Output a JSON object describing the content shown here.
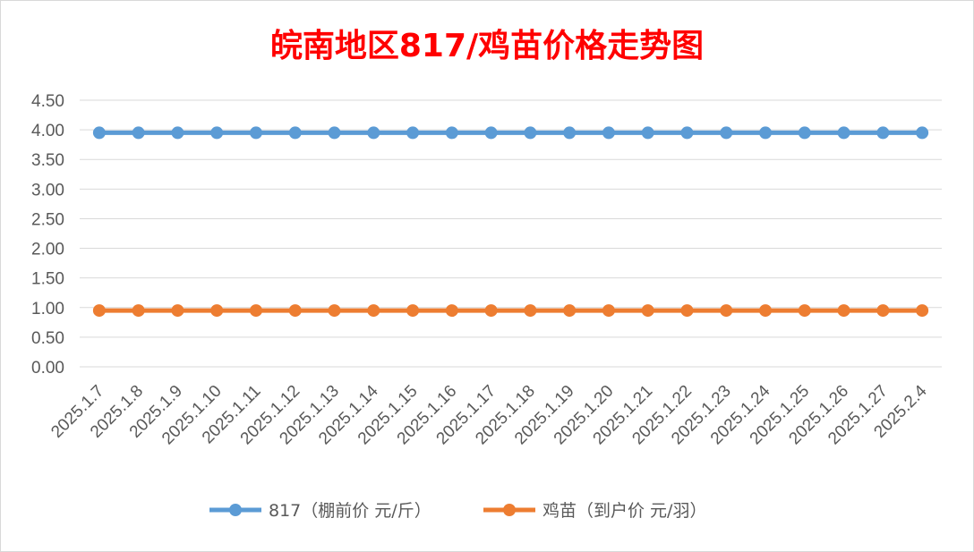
{
  "chart_data": {
    "type": "line",
    "title": "皖南地区817/鸡苗价格走势图",
    "categories": [
      "2025.1.7",
      "2025.1.8",
      "2025.1.9",
      "2025.1.10",
      "2025.1.11",
      "2025.1.12",
      "2025.1.13",
      "2025.1.14",
      "2025.1.15",
      "2025.1.16",
      "2025.1.17",
      "2025.1.18",
      "2025.1.19",
      "2025.1.20",
      "2025.1.21",
      "2025.1.22",
      "2025.1.23",
      "2025.1.24",
      "2025.1.25",
      "2025.1.26",
      "2025.1.27",
      "2025.2.4"
    ],
    "series": [
      {
        "name": "817（棚前价 元/斤）",
        "color": "#5b9bd5",
        "values": [
          3.95,
          3.95,
          3.95,
          3.95,
          3.95,
          3.95,
          3.95,
          3.95,
          3.95,
          3.95,
          3.95,
          3.95,
          3.95,
          3.95,
          3.95,
          3.95,
          3.95,
          3.95,
          3.95,
          3.95,
          3.95,
          3.95
        ]
      },
      {
        "name": "鸡苗（到户价 元/羽）",
        "color": "#ed7d31",
        "values": [
          0.95,
          0.95,
          0.95,
          0.95,
          0.95,
          0.95,
          0.95,
          0.95,
          0.95,
          0.95,
          0.95,
          0.95,
          0.95,
          0.95,
          0.95,
          0.95,
          0.95,
          0.95,
          0.95,
          0.95,
          0.95,
          0.95
        ]
      }
    ],
    "ylim": [
      0,
      4.5
    ],
    "yticks": [
      "0.00",
      "0.50",
      "1.00",
      "1.50",
      "2.00",
      "2.50",
      "3.00",
      "3.50",
      "4.00",
      "4.50"
    ],
    "grid": true,
    "legend": "bottom"
  }
}
